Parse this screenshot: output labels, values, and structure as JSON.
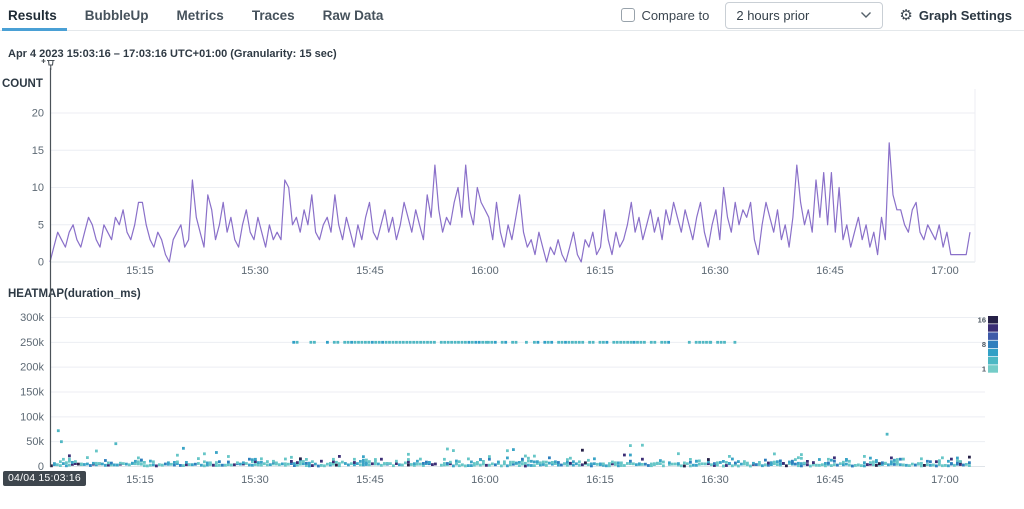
{
  "tabs": {
    "items": [
      {
        "label": "Results",
        "active": true
      },
      {
        "label": "BubbleUp",
        "active": false
      },
      {
        "label": "Metrics",
        "active": false
      },
      {
        "label": "Traces",
        "active": false
      },
      {
        "label": "Raw Data",
        "active": false
      }
    ]
  },
  "controls": {
    "compare_label": "Compare to",
    "compare_checked": false,
    "compare_select_value": "2 hours prior",
    "graph_settings_label": "Graph Settings"
  },
  "header": {
    "time_range": "Apr 4 2023 15:03:16 – 17:03:16 UTC+01:00 (Granularity: 15 sec)"
  },
  "pinned_marker": {
    "time_label": "04/04 15:03:16",
    "position": "start-of-range"
  },
  "chart_data": [
    {
      "type": "line",
      "title": "COUNT",
      "x_range": [
        "15:03:16",
        "17:03:16"
      ],
      "x_ticks": [
        "15:15",
        "15:30",
        "15:45",
        "16:00",
        "16:15",
        "16:30",
        "16:45",
        "17:00"
      ],
      "x_tick_offset_min": [
        11.73,
        26.73,
        41.73,
        56.73,
        71.73,
        86.73,
        101.73,
        116.73
      ],
      "y_ticks": [
        0,
        5,
        10,
        15,
        20
      ],
      "ylim": [
        0,
        25
      ],
      "grid": true,
      "value_interval_sec": 30,
      "series": [
        {
          "name": "COUNT",
          "color": "#8a70c9",
          "values": [
            0,
            2,
            4,
            3,
            2,
            4,
            5,
            3,
            2,
            4,
            6,
            5,
            3,
            2,
            5,
            4,
            3,
            6,
            5,
            7,
            4,
            3,
            5,
            8,
            8,
            5,
            3,
            2,
            4,
            3,
            1,
            0,
            3,
            4,
            5,
            2,
            3,
            11,
            6,
            4,
            2,
            9,
            7,
            3,
            5,
            8,
            4,
            6,
            3,
            2,
            5,
            7,
            4,
            3,
            6,
            4,
            2,
            5,
            3,
            4,
            3,
            11,
            10,
            5,
            6,
            4,
            7,
            5,
            9,
            4,
            3,
            5,
            6,
            4,
            9,
            5,
            3,
            6,
            4,
            2,
            5,
            3,
            6,
            8,
            4,
            3,
            5,
            7,
            4,
            6,
            3,
            5,
            8,
            6,
            4,
            7,
            5,
            3,
            9,
            6,
            13,
            7,
            4,
            6,
            5,
            8,
            10,
            6,
            13,
            7,
            5,
            10,
            8,
            7,
            6,
            3,
            8,
            4,
            2,
            5,
            3,
            6,
            9,
            4,
            2,
            3,
            1,
            4,
            2,
            0,
            2,
            1,
            3,
            1,
            0,
            2,
            4,
            1,
            0,
            3,
            2,
            4,
            1,
            2,
            7,
            3,
            1,
            4,
            2,
            3,
            5,
            8,
            4,
            6,
            3,
            5,
            7,
            4,
            6,
            3,
            7,
            5,
            8,
            6,
            4,
            7,
            5,
            3,
            6,
            8,
            4,
            2,
            5,
            7,
            3,
            10,
            6,
            4,
            8,
            5,
            7,
            6,
            8,
            3,
            1,
            5,
            8,
            6,
            4,
            7,
            3,
            5,
            2,
            6,
            13,
            8,
            5,
            7,
            4,
            11,
            6,
            12,
            5,
            12,
            4,
            10,
            3,
            5,
            2,
            4,
            6,
            3,
            5,
            2,
            4,
            1,
            6,
            3,
            16,
            9,
            7,
            7,
            5,
            4,
            7,
            8,
            4,
            3,
            5,
            4,
            3,
            5,
            2,
            4,
            1,
            1,
            1,
            1,
            1,
            4
          ]
        }
      ]
    },
    {
      "type": "heatmap",
      "title": "HEATMAP(duration_ms)",
      "x_range": [
        "15:03:16",
        "17:03:16"
      ],
      "x_ticks": [
        "15:15",
        "15:30",
        "15:45",
        "16:00",
        "16:15",
        "16:30",
        "16:45",
        "17:00"
      ],
      "x_tick_offset_min": [
        11.73,
        26.73,
        41.73,
        56.73,
        71.73,
        86.73,
        101.73,
        116.73
      ],
      "y_ticks": [
        "0",
        "50k",
        "100k",
        "150k",
        "200k",
        "250k",
        "300k"
      ],
      "y_tick_values_k": [
        0,
        50,
        100,
        150,
        200,
        250,
        300
      ],
      "ylim_ms": [
        0,
        300000
      ],
      "seed": 7,
      "regions": {
        "bottom_dense": {
          "t_min": [
            0,
            120
          ],
          "value_k_range": [
            0,
            12
          ],
          "density": 0.97
        },
        "bottom_spikes": {
          "t_min": [
            0,
            120
          ],
          "value_k_range": [
            12,
            46
          ],
          "density": 0.1
        },
        "band_250k": {
          "value_k": 250,
          "segments": [
            {
              "t_min": [
                30.7,
                36
              ],
              "density": 0.45
            },
            {
              "t_min": [
                36,
                57
              ],
              "density": 0.9
            },
            {
              "t_min": [
                57,
                63
              ],
              "density": 0.5
            },
            {
              "t_min": [
                63,
                76
              ],
              "density": 0.8
            },
            {
              "t_min": [
                76,
                86
              ],
              "density": 0.55
            },
            {
              "t_min": [
                86,
                90
              ],
              "density": 0.4
            }
          ]
        },
        "outliers": [
          {
            "t_min": 0.9,
            "value_k": 72
          },
          {
            "t_min": 1.3,
            "value_k": 50
          },
          {
            "t_min": 8.4,
            "value_k": 46
          },
          {
            "t_min": 109,
            "value_k": 65
          }
        ]
      },
      "dot_colors": {
        "palette": [
          "#67c6c7",
          "#3aa4c6",
          "#2e7fbd",
          "#3c2e76",
          "#262047"
        ],
        "weights": [
          0.52,
          0.26,
          0.13,
          0.06,
          0.03
        ],
        "band_main": "#4fb7c3",
        "band_alt": "#2f9fc6"
      },
      "legend": {
        "max_label": "16",
        "mid_label": "8",
        "min_label": "1",
        "colors": [
          "#262047",
          "#3a2d74",
          "#3f5aa8",
          "#2e7fbd",
          "#31a0c6",
          "#4cb8c4",
          "#74ccc8"
        ]
      }
    }
  ]
}
